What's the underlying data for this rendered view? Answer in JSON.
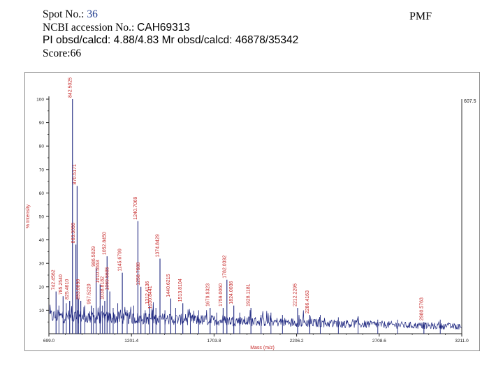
{
  "header": {
    "spot_label": "Spot No.: ",
    "spot_value": "36",
    "accession_label": "NCBI accession No.: ",
    "accession_value": "CAH69313",
    "pi_mr": "PI obsd/calcd: 4.88/4.83  Mr obsd/calcd: 46878/35342",
    "score": "Score:66"
  },
  "method_label": "PMF",
  "chart_data": {
    "type": "line",
    "title": "",
    "xlabel": "Mass (m/z)",
    "ylabel": "% Intensity",
    "xlim": [
      699.0,
      3211.0
    ],
    "ylim": [
      0,
      100
    ],
    "x_ticks": [
      699.0,
      1201.4,
      1703.8,
      2206.2,
      2708.6,
      3211.0
    ],
    "x_tick_labels": [
      "699.0",
      "1201.4",
      "1703.8",
      "2206.2",
      "2708.6",
      "3211.0"
    ],
    "y_ticks": [
      10,
      20,
      30,
      40,
      50,
      60,
      70,
      80,
      90,
      100
    ],
    "max_intensity_label": "607.5",
    "color": "#1a237e",
    "peaks": [
      {
        "mz": 742.4562,
        "label": "742.4562",
        "intensity": 18
      },
      {
        "mz": 785.254,
        "label": "785.2540",
        "intensity": 16
      },
      {
        "mz": 825.461,
        "label": "825.4610",
        "intensity": 14
      },
      {
        "mz": 842.5025,
        "label": "842.5025",
        "intensity": 100
      },
      {
        "mz": 863.3098,
        "label": "863.3098",
        "intensity": 38
      },
      {
        "mz": 870.5171,
        "label": "870.5171",
        "intensity": 63
      },
      {
        "mz": 893.069,
        "label": "893.0690",
        "intensity": 14
      },
      {
        "mz": 957.522,
        "label": "957.5220",
        "intensity": 12
      },
      {
        "mz": 986.5029,
        "label": "986.5029",
        "intensity": 28
      },
      {
        "mz": 1010.5553,
        "label": "1010.5553",
        "intensity": 21
      },
      {
        "mz": 1038.8182,
        "label": "1038.8182",
        "intensity": 14
      },
      {
        "mz": 1052.845,
        "label": "1052.8450",
        "intensity": 33
      },
      {
        "mz": 1069.5685,
        "label": "1069.5685",
        "intensity": 18
      },
      {
        "mz": 1145.6799,
        "label": "1145.6799",
        "intensity": 26
      },
      {
        "mz": 1240.7069,
        "label": "1240.7069",
        "intensity": 48
      },
      {
        "mz": 1258.7688,
        "label": "1258.7688",
        "intensity": 20
      },
      {
        "mz": 1312.4136,
        "label": "1312.4136",
        "intensity": 12
      },
      {
        "mz": 1330.8441,
        "label": "1330.8441",
        "intensity": 10
      },
      {
        "mz": 1374.8429,
        "label": "1374.8429",
        "intensity": 32
      },
      {
        "mz": 1440.6215,
        "label": "1440.6215",
        "intensity": 15
      },
      {
        "mz": 1513.8104,
        "label": "1513.8104",
        "intensity": 13
      },
      {
        "mz": 1679.9323,
        "label": "1679.9323",
        "intensity": 11
      },
      {
        "mz": 1759.006,
        "label": "1759.0060",
        "intensity": 11
      },
      {
        "mz": 1782.0392,
        "label": "1782.0392",
        "intensity": 23
      },
      {
        "mz": 1824.0036,
        "label": "1824.0036",
        "intensity": 12
      },
      {
        "mz": 1928.1181,
        "label": "1928.1181",
        "intensity": 11
      },
      {
        "mz": 2212.2295,
        "label": "2212.2295",
        "intensity": 11
      },
      {
        "mz": 2286.4163,
        "label": "2286.4163",
        "intensity": 8
      },
      {
        "mz": 2980.5763,
        "label": "2980.5763",
        "intensity": 5
      }
    ],
    "baseline_peaks": [
      {
        "mz": 760.0,
        "intensity": 12
      },
      {
        "mz": 805.0,
        "intensity": 13
      },
      {
        "mz": 880.0,
        "intensity": 15
      },
      {
        "mz": 918.0,
        "intensity": 12
      },
      {
        "mz": 970.0,
        "intensity": 11
      },
      {
        "mz": 1025.0,
        "intensity": 12
      },
      {
        "mz": 1090.0,
        "intensity": 11
      },
      {
        "mz": 1118.0,
        "intensity": 13
      },
      {
        "mz": 1175.0,
        "intensity": 10
      },
      {
        "mz": 1215.0,
        "intensity": 12
      },
      {
        "mz": 1285.0,
        "intensity": 10
      },
      {
        "mz": 1350.0,
        "intensity": 11
      },
      {
        "mz": 1405.0,
        "intensity": 10
      },
      {
        "mz": 1470.0,
        "intensity": 11
      },
      {
        "mz": 1560.0,
        "intensity": 9
      },
      {
        "mz": 1610.0,
        "intensity": 10
      },
      {
        "mz": 1720.0,
        "intensity": 9
      },
      {
        "mz": 1860.0,
        "intensity": 9
      },
      {
        "mz": 1990.0,
        "intensity": 8
      },
      {
        "mz": 2050.0,
        "intensity": 9
      },
      {
        "mz": 2120.0,
        "intensity": 8
      },
      {
        "mz": 2350.0,
        "intensity": 8
      },
      {
        "mz": 2460.0,
        "intensity": 7
      },
      {
        "mz": 2580.0,
        "intensity": 7
      },
      {
        "mz": 2700.0,
        "intensity": 6
      },
      {
        "mz": 2820.0,
        "intensity": 6
      },
      {
        "mz": 3080.0,
        "intensity": 6
      }
    ]
  }
}
